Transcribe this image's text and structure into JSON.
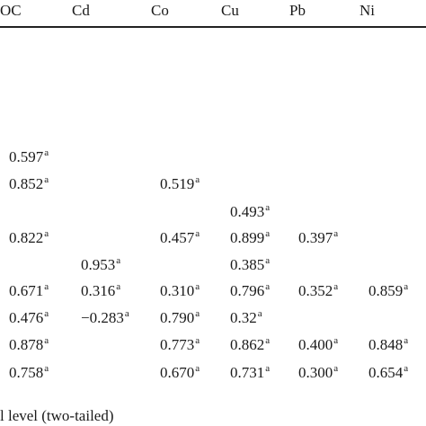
{
  "table": {
    "headers": [
      "OC",
      "Cd",
      "Co",
      "Cu",
      "Pb",
      "Ni"
    ],
    "superscript": "a",
    "rows": [
      {
        "OC": "0.597",
        "Cd": "",
        "Co": "",
        "Cu": "",
        "Pb": "",
        "Ni": ""
      },
      {
        "OC": "0.852",
        "Cd": "",
        "Co": "0.519",
        "Cu": "",
        "Pb": "",
        "Ni": ""
      },
      {
        "OC": "",
        "Cd": "",
        "Co": "",
        "Cu": "0.493",
        "Pb": "",
        "Ni": ""
      },
      {
        "OC": "0.822",
        "Cd": "",
        "Co": "0.457",
        "Cu": "0.899",
        "Pb": "0.397",
        "Ni": ""
      },
      {
        "OC": "",
        "Cd": "0.953",
        "Co": "",
        "Cu": "0.385",
        "Pb": "",
        "Ni": ""
      },
      {
        "OC": "0.671",
        "Cd": "0.316",
        "Co": "0.310",
        "Cu": "0.796",
        "Pb": "0.352",
        "Ni": "0.859"
      },
      {
        "OC": "0.476",
        "Cd": "−0.283",
        "Co": "0.790",
        "Cu": "0.32",
        "Pb": "",
        "Ni": ""
      },
      {
        "OC": "0.878",
        "Cd": "",
        "Co": "0.773",
        "Cu": "0.862",
        "Pb": "0.400",
        "Ni": "0.848"
      },
      {
        "OC": "0.758",
        "Cd": "",
        "Co": "0.670",
        "Cu": "0.731",
        "Pb": "0.300",
        "Ni": "0.654"
      }
    ]
  },
  "footnote": "l level (two-tailed)"
}
